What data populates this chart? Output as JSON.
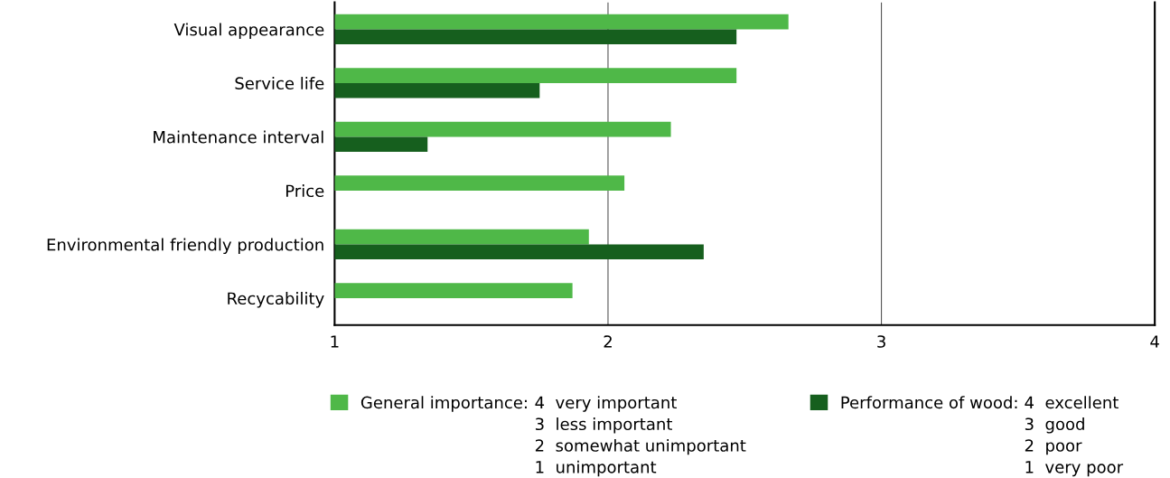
{
  "chart_data": {
    "type": "bar",
    "orientation": "horizontal",
    "categories": [
      "Visual appearance",
      "Service life",
      "Maintenance interval",
      "Price",
      "Environmental friendly production",
      "Recycability"
    ],
    "series": [
      {
        "name": "General importance:",
        "color": "#4fb848",
        "values": [
          2.66,
          2.47,
          2.23,
          2.06,
          1.93,
          1.87
        ]
      },
      {
        "name": "Performance of wood:",
        "color": "#165f1e",
        "values": [
          2.47,
          1.75,
          1.34,
          null,
          2.35,
          null
        ]
      }
    ],
    "xlim": [
      1,
      4
    ],
    "xticks": [
      1,
      2,
      3,
      4
    ],
    "grid": "x",
    "legend": "bottom",
    "annotations": [
      "4  very important",
      "3  less important",
      "2  somewhat unimportant",
      "1  unimportant",
      "4  excellent",
      "3  good",
      "2  poor",
      "1  very poor"
    ]
  }
}
